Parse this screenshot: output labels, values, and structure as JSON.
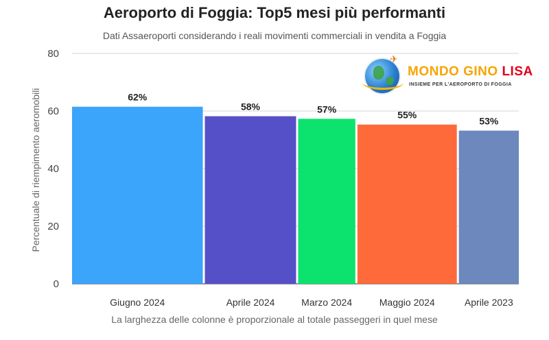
{
  "title": "Aeroporto di Foggia: Top5 mesi più performanti",
  "subtitle": "Dati Assaeroporti considerando i reali movimenti commerciali in vendita a Foggia",
  "logo": {
    "name_part1": "MONDO GINO",
    "name_part2": "LISA",
    "tagline": "INSIEME PER L'AEROPORTO DI FOGGIA",
    "icon": "globe-with-airplane-icon"
  },
  "chart_data": {
    "type": "bar",
    "title": "Aeroporto di Foggia: Top5 mesi più performanti",
    "subtitle": "Dati Assaeroporti considerando i reali movimenti commerciali in vendita a Foggia",
    "xlabel": "La larghezza delle colonne è proporzionale al totale passeggeri in quel mese",
    "ylabel": "Percentuale di riempimento aeromobili",
    "ylim": [
      0,
      80
    ],
    "yticks": [
      0,
      20,
      40,
      60,
      80
    ],
    "grid": true,
    "categories": [
      "Giugno 2024",
      "Aprile 2024",
      "Marzo 2024",
      "Maggio 2024",
      "Aprile 2023"
    ],
    "values": [
      61.5,
      58.2,
      57.3,
      55.3,
      53.2
    ],
    "labels": [
      "62%",
      "58%",
      "57%",
      "55%",
      "53%"
    ],
    "relative_widths": [
      192,
      134,
      84,
      146,
      88
    ],
    "colors": [
      "#3ba4fb",
      "#5650c8",
      "#0ce36e",
      "#ff6a3a",
      "#6c88bd"
    ]
  }
}
